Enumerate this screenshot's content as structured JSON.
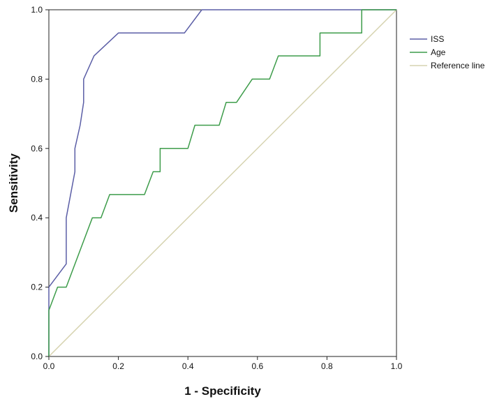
{
  "chart_data": {
    "type": "line",
    "title": "",
    "xlabel": "1 - Specificity",
    "ylabel": "Sensitivity",
    "xlim": [
      0.0,
      1.0
    ],
    "ylim": [
      0.0,
      1.0
    ],
    "xticks": [
      "0.0",
      "0.2",
      "0.4",
      "0.6",
      "0.8",
      "1.0"
    ],
    "yticks": [
      "0.0",
      "0.2",
      "0.4",
      "0.6",
      "0.8",
      "1.0"
    ],
    "grid": false,
    "legend_position": "right",
    "series": [
      {
        "name": "ISS",
        "color": "#5b5ea6",
        "x": [
          0.0,
          0.0,
          0.05,
          0.05,
          0.075,
          0.075,
          0.09,
          0.1,
          0.1,
          0.13,
          0.2,
          0.39,
          0.44,
          1.0
        ],
        "y": [
          0.0,
          0.2,
          0.267,
          0.4,
          0.533,
          0.6,
          0.667,
          0.733,
          0.8,
          0.867,
          0.933,
          0.933,
          1.0,
          1.0
        ]
      },
      {
        "name": "Age",
        "color": "#3d9c4a",
        "x": [
          0.0,
          0.0,
          0.025,
          0.05,
          0.125,
          0.15,
          0.175,
          0.275,
          0.3,
          0.32,
          0.32,
          0.4,
          0.42,
          0.49,
          0.51,
          0.54,
          0.585,
          0.635,
          0.66,
          0.78,
          0.78,
          0.9,
          0.9,
          1.0
        ],
        "y": [
          0.0,
          0.133,
          0.2,
          0.2,
          0.4,
          0.4,
          0.467,
          0.467,
          0.533,
          0.533,
          0.6,
          0.6,
          0.667,
          0.667,
          0.733,
          0.733,
          0.8,
          0.8,
          0.867,
          0.867,
          0.933,
          0.933,
          1.0,
          1.0
        ]
      },
      {
        "name": "Reference line",
        "color": "#d6d3b0",
        "x": [
          0.0,
          1.0
        ],
        "y": [
          0.0,
          1.0
        ]
      }
    ]
  }
}
